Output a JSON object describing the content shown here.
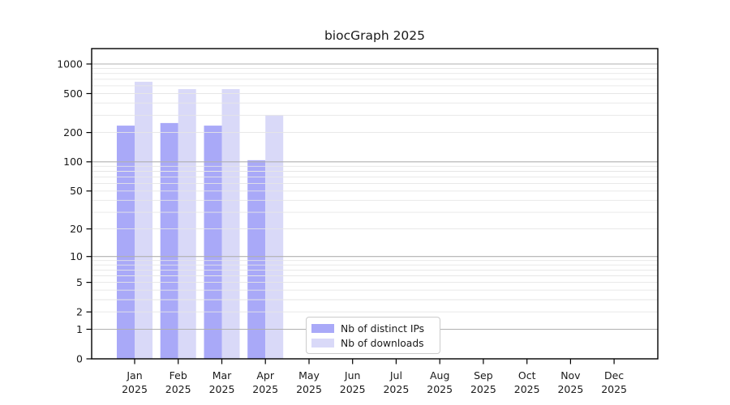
{
  "title": "biocGraph 2025",
  "chart_data": {
    "type": "bar",
    "title": "biocGraph 2025",
    "y_scale": "log10(value+1)",
    "categories": [
      "Jan",
      "Feb",
      "Mar",
      "Apr",
      "May",
      "Jun",
      "Jul",
      "Aug",
      "Sep",
      "Oct",
      "Nov",
      "Dec"
    ],
    "category_year": "2025",
    "series": [
      {
        "name": "Nb of distinct IPs",
        "color": "#a9a9f8",
        "values": [
          235,
          250,
          235,
          104,
          0,
          0,
          0,
          0,
          0,
          0,
          0,
          0
        ]
      },
      {
        "name": "Nb of downloads",
        "color": "#d9d9f8",
        "values": [
          660,
          555,
          555,
          300,
          0,
          0,
          0,
          0,
          0,
          0,
          0,
          0
        ]
      }
    ],
    "y_ticks": [
      0,
      1,
      2,
      5,
      10,
      20,
      50,
      100,
      200,
      500,
      1000
    ],
    "ylim": [
      0,
      1200
    ],
    "grid": "horizontal, log minors at 2-9 per decade, darker majors at powers of 10",
    "legend_position": "inside bottom-center"
  },
  "colors": {
    "background": "#ffffff",
    "axis": "#000000",
    "text": "#1a1a1a",
    "major_grid": "#b0b0b0",
    "minor_grid": "#e6e6e6",
    "legend_border": "#cccccc"
  }
}
